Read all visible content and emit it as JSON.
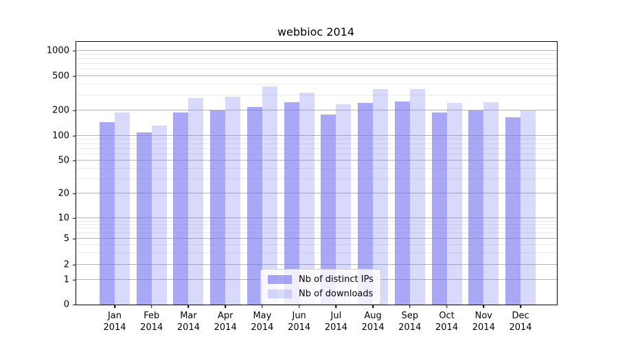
{
  "chart_data": {
    "type": "bar",
    "title": "webbioc 2014",
    "x_tick_year": "2014",
    "categories": [
      "Jan",
      "Feb",
      "Mar",
      "Apr",
      "May",
      "Jun",
      "Jul",
      "Aug",
      "Sep",
      "Oct",
      "Nov",
      "Dec"
    ],
    "series": [
      {
        "name": "Nb of distinct IPs",
        "color": "rgba(115,115,242,0.62)",
        "values": [
          145,
          110,
          190,
          200,
          220,
          250,
          180,
          245,
          255,
          190,
          200,
          165
        ]
      },
      {
        "name": "Nb of downloads",
        "color": "rgba(115,115,242,0.27)",
        "values": [
          190,
          132,
          280,
          290,
          380,
          325,
          235,
          350,
          350,
          245,
          250,
          200
        ]
      }
    ],
    "y_ticks": [
      0,
      1,
      2,
      5,
      10,
      20,
      50,
      100,
      200,
      500,
      1000
    ],
    "y_scale": "symlog",
    "ylim": [
      0,
      1300
    ],
    "grid": true,
    "legend_position": "lower center"
  },
  "colors": {
    "grid_major": "#b3b3b3",
    "grid_minor": "#e9e9e9",
    "axis": "#000000",
    "background": "#ffffff"
  }
}
